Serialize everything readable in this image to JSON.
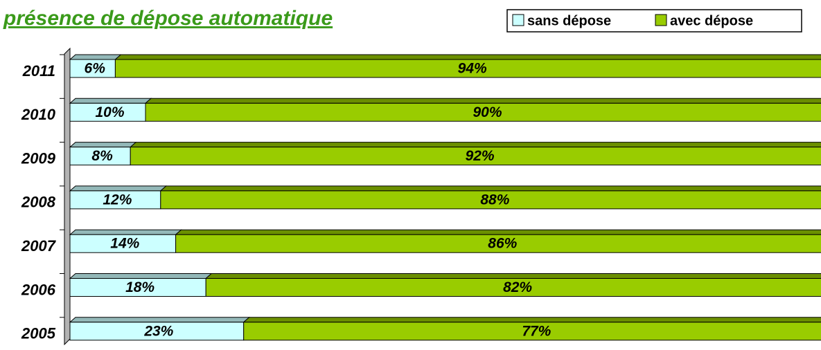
{
  "chart_data": {
    "type": "bar",
    "orientation": "horizontal",
    "stacked": true,
    "title": "présence de dépose automatique",
    "categories": [
      "2011",
      "2010",
      "2009",
      "2008",
      "2007",
      "2006",
      "2005"
    ],
    "series": [
      {
        "name": "sans dépose",
        "color": "#ccffff",
        "values": [
          6,
          10,
          8,
          12,
          14,
          18,
          23
        ],
        "value_labels": [
          "6%",
          "10%",
          "8%",
          "12%",
          "14%",
          "18%",
          "23%"
        ]
      },
      {
        "name": "avec dépose",
        "color": "#99cc00",
        "values": [
          94,
          90,
          92,
          88,
          86,
          82,
          77
        ],
        "value_labels": [
          "94%",
          "90%",
          "92%",
          "88%",
          "86%",
          "82%",
          "77%"
        ]
      }
    ],
    "legend": "top-right"
  }
}
